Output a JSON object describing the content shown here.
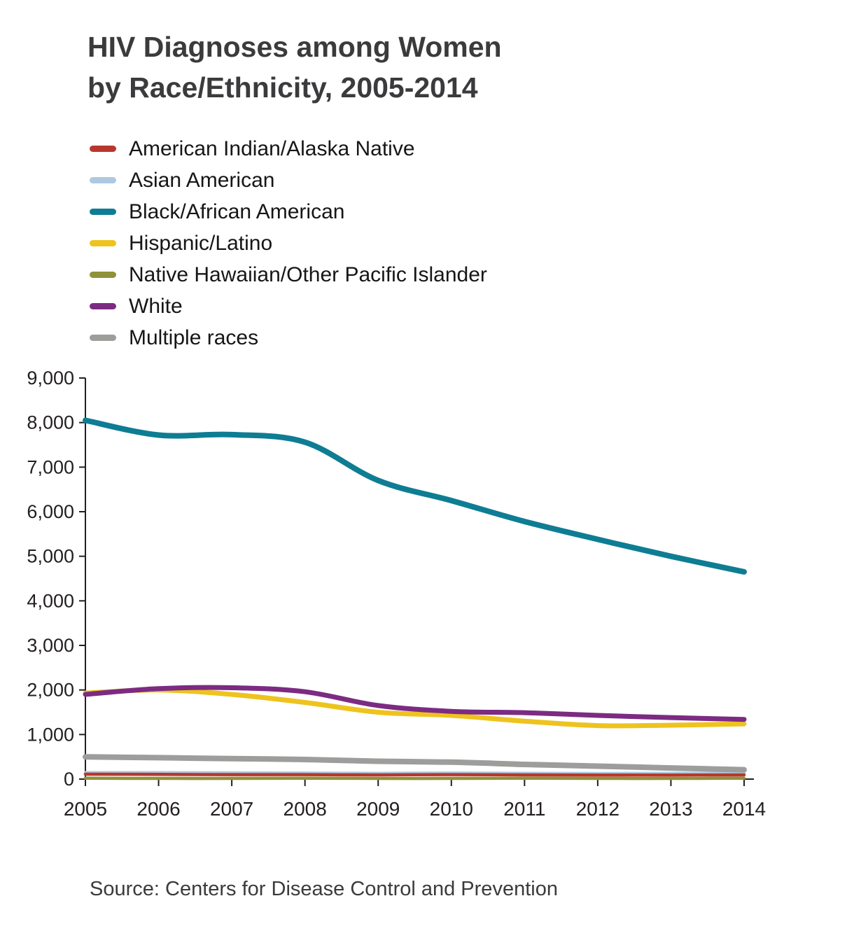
{
  "title": {
    "line1": "HIV Diagnoses among Women",
    "line2": "by Race/Ethnicity, 2005-2014"
  },
  "source": "Source: Centers for Disease Control and Prevention",
  "chart_data": {
    "type": "line",
    "title": "HIV Diagnoses among Women by Race/Ethnicity, 2005-2014",
    "x": [
      2005,
      2006,
      2007,
      2008,
      2009,
      2010,
      2011,
      2012,
      2013,
      2014
    ],
    "x_tick_labels": [
      "2005",
      "2006",
      "2007",
      "2008",
      "2009",
      "2010",
      "2011",
      "2012",
      "2013",
      "2014"
    ],
    "y_ticks": [
      0,
      1000,
      2000,
      3000,
      4000,
      5000,
      6000,
      7000,
      8000,
      9000
    ],
    "y_tick_labels": [
      "0",
      "1,000",
      "2,000",
      "3,000",
      "4,000",
      "5,000",
      "6,000",
      "7,000",
      "8,000",
      "9,000"
    ],
    "ylim": [
      0,
      9000
    ],
    "grid": false,
    "legend_position": "top-left",
    "series": [
      {
        "name": "American Indian/Alaska Native",
        "color": "#b8372d",
        "width": 4.5,
        "values": [
          110,
          105,
          100,
          100,
          95,
          100,
          95,
          90,
          90,
          95
        ]
      },
      {
        "name": "Asian American",
        "color": "#aec8e0",
        "width": 4.5,
        "values": [
          145,
          145,
          140,
          135,
          130,
          135,
          130,
          125,
          130,
          135
        ]
      },
      {
        "name": "Black/African American",
        "color": "#0e7d93",
        "width": 8,
        "values": [
          8050,
          7720,
          7730,
          7560,
          6700,
          6250,
          5780,
          5380,
          5000,
          4650
        ]
      },
      {
        "name": "Hispanic/Latino",
        "color": "#eec31e",
        "width": 7,
        "values": [
          1930,
          2000,
          1900,
          1720,
          1500,
          1430,
          1300,
          1200,
          1210,
          1240
        ]
      },
      {
        "name": "Native Hawaiian/Other Pacific Islander",
        "color": "#8f9239",
        "width": 4.5,
        "values": [
          20,
          15,
          15,
          20,
          15,
          15,
          20,
          15,
          15,
          20
        ]
      },
      {
        "name": "White",
        "color": "#7c2b82",
        "width": 7,
        "values": [
          1900,
          2030,
          2050,
          1960,
          1650,
          1520,
          1490,
          1430,
          1380,
          1340
        ]
      },
      {
        "name": "Multiple races",
        "color": "#9d9d9c",
        "width": 8,
        "values": [
          500,
          480,
          460,
          440,
          400,
          380,
          330,
          290,
          250,
          210
        ]
      }
    ],
    "draw_order": [
      4,
      1,
      0,
      6,
      3,
      5,
      2
    ]
  }
}
